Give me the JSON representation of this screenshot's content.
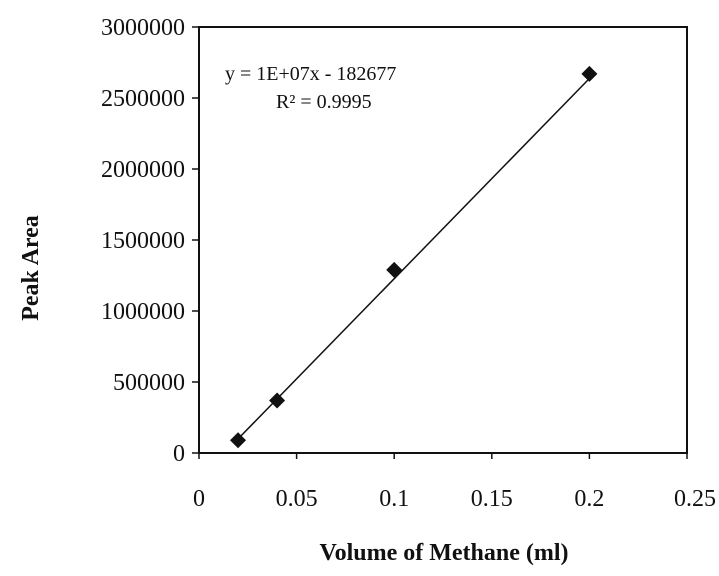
{
  "chart_data": {
    "type": "scatter",
    "xlabel": "Volume of Methane (ml)",
    "ylabel": "Peak Area",
    "xlim": [
      0,
      0.25
    ],
    "ylim": [
      0,
      3000000
    ],
    "x_ticks": [
      "0",
      "0.05",
      "0.1",
      "0.15",
      "0.2",
      "0.25"
    ],
    "y_ticks": [
      "0",
      "500000",
      "1000000",
      "1500000",
      "2000000",
      "2500000",
      "3000000"
    ],
    "grid": false,
    "legend": "none",
    "series": [
      {
        "x": [
          0.02,
          0.04,
          0.1,
          0.2
        ],
        "y": [
          90000,
          370000,
          1290000,
          2670000
        ]
      }
    ],
    "trendline": {
      "slope": 14100000,
      "intercept": -182677,
      "x_range": [
        0.02,
        0.2
      ]
    },
    "annotations": {
      "equation": "y = 1E+07x - 182677",
      "r_squared": "R² = 0.9995"
    },
    "colors": {
      "marker": "#111111",
      "line": "#111111"
    }
  }
}
